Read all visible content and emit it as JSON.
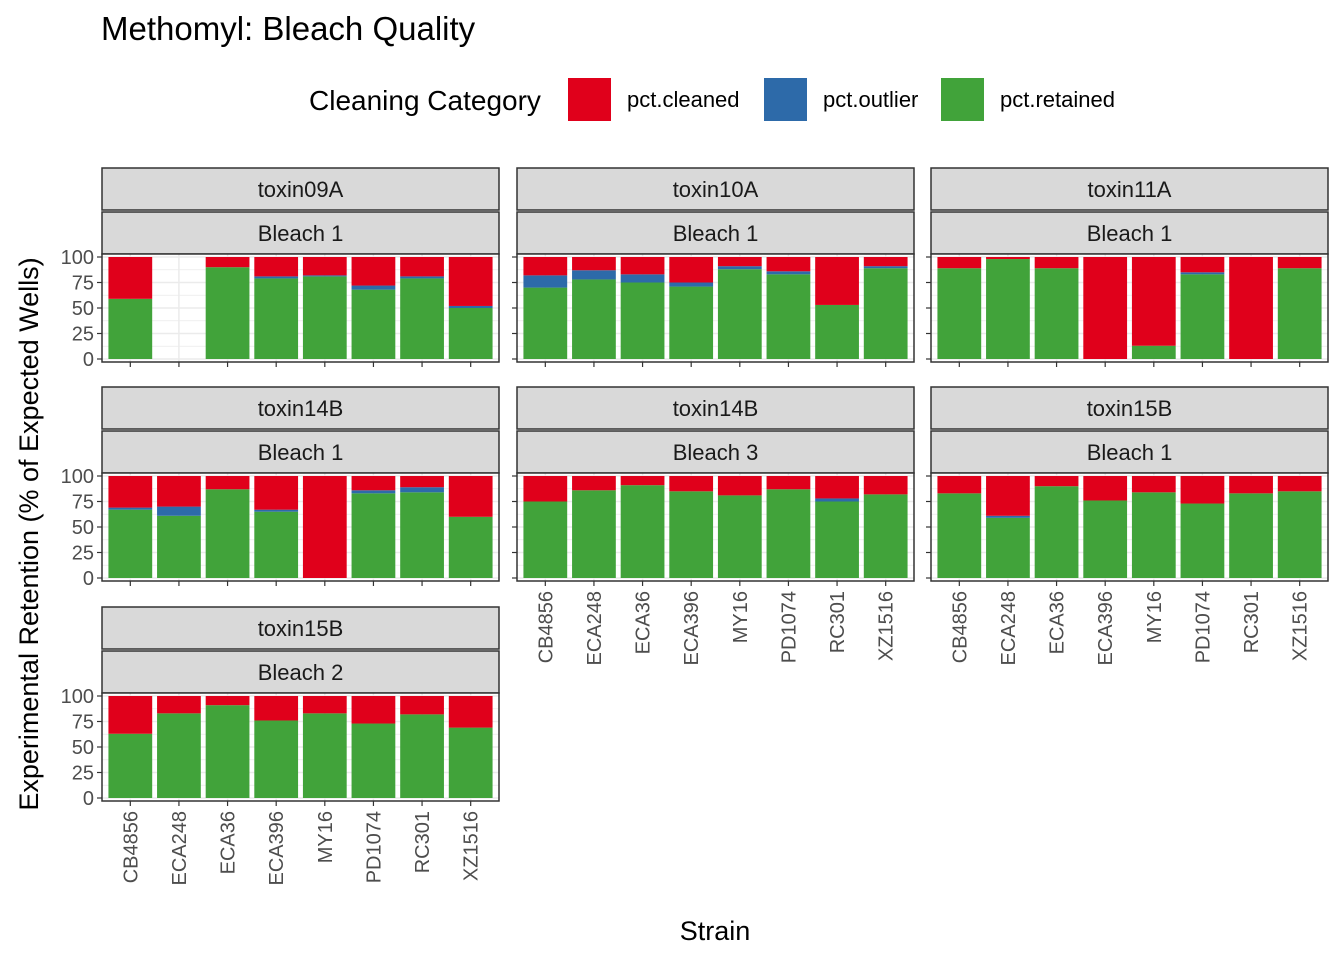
{
  "title": "Methomyl: Bleach Quality",
  "legend": {
    "title": "Cleaning Category",
    "items": [
      {
        "key": "pct.cleaned",
        "label": "pct.cleaned",
        "color": "#e0001b"
      },
      {
        "key": "pct.outlier",
        "label": "pct.outlier",
        "color": "#2d6aa9"
      },
      {
        "key": "pct.retained",
        "label": "pct.retained",
        "color": "#41a33a"
      }
    ]
  },
  "chart_data": {
    "type": "bar",
    "stacked": true,
    "title": "Methomyl: Bleach Quality",
    "xlabel": "Strain",
    "ylabel": "Experimental Retention (% of Expected Wells)",
    "ylim": [
      0,
      100
    ],
    "yticks": [
      0,
      25,
      50,
      75,
      100
    ],
    "categories": [
      "CB4856",
      "ECA248",
      "ECA36",
      "ECA396",
      "MY16",
      "PD1074",
      "RC301",
      "XZ1516"
    ],
    "series_order": [
      "pct.retained",
      "pct.outlier",
      "pct.cleaned"
    ],
    "panels": [
      {
        "toxin": "toxin09A",
        "bleach": "Bleach 1",
        "pct.retained": [
          59,
          null,
          90,
          79,
          81,
          68,
          79,
          50
        ],
        "pct.outlier": [
          0,
          null,
          0,
          2,
          1,
          4,
          2,
          2
        ],
        "pct.cleaned": [
          41,
          null,
          10,
          19,
          18,
          28,
          19,
          48
        ]
      },
      {
        "toxin": "toxin10A",
        "bleach": "Bleach 1",
        "pct.retained": [
          70,
          78,
          75,
          71,
          88,
          83,
          53,
          89
        ],
        "pct.outlier": [
          12,
          9,
          8,
          4,
          3,
          3,
          0,
          2
        ],
        "pct.cleaned": [
          18,
          13,
          17,
          25,
          9,
          14,
          47,
          9
        ]
      },
      {
        "toxin": "toxin11A",
        "bleach": "Bleach 1",
        "pct.retained": [
          89,
          98,
          89,
          0,
          13,
          83,
          0,
          89
        ],
        "pct.outlier": [
          0,
          0,
          0,
          0,
          0,
          2,
          0,
          0
        ],
        "pct.cleaned": [
          11,
          2,
          11,
          100,
          87,
          15,
          100,
          11
        ]
      },
      {
        "toxin": "toxin14B",
        "bleach": "Bleach 1",
        "pct.retained": [
          67,
          61,
          87,
          65,
          0,
          83,
          84,
          60
        ],
        "pct.outlier": [
          2,
          9,
          0,
          2,
          0,
          3,
          5,
          0
        ],
        "pct.cleaned": [
          31,
          30,
          13,
          33,
          100,
          14,
          11,
          40
        ]
      },
      {
        "toxin": "toxin14B",
        "bleach": "Bleach 3",
        "pct.retained": [
          75,
          86,
          91,
          85,
          81,
          87,
          75,
          82
        ],
        "pct.outlier": [
          0,
          0,
          0,
          0,
          0,
          0,
          3,
          0
        ],
        "pct.cleaned": [
          25,
          14,
          9,
          15,
          19,
          13,
          22,
          18
        ]
      },
      {
        "toxin": "toxin15B",
        "bleach": "Bleach 1",
        "pct.retained": [
          83,
          59,
          90,
          76,
          84,
          73,
          83,
          85
        ],
        "pct.outlier": [
          0,
          2,
          0,
          0,
          0,
          0,
          0,
          0
        ],
        "pct.cleaned": [
          17,
          39,
          10,
          24,
          16,
          27,
          17,
          15
        ]
      },
      {
        "toxin": "toxin15B",
        "bleach": "Bleach 2",
        "pct.retained": [
          63,
          83,
          91,
          76,
          83,
          73,
          82,
          69
        ],
        "pct.outlier": [
          0,
          0,
          0,
          0,
          0,
          0,
          0,
          0
        ],
        "pct.cleaned": [
          37,
          17,
          9,
          24,
          17,
          27,
          18,
          31
        ]
      }
    ]
  }
}
